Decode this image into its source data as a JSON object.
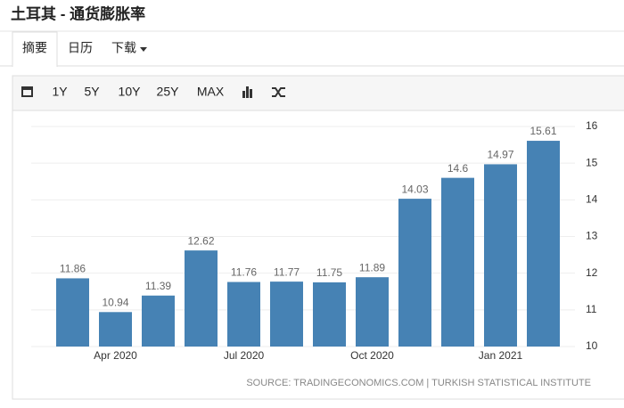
{
  "header": {
    "title": "土耳其 - 通货膨胀率"
  },
  "tabs": [
    "摘要",
    "日历",
    "下载"
  ],
  "toolbar": [
    "1Y",
    "5Y",
    "10Y",
    "25Y",
    "MAX"
  ],
  "chart_data": {
    "type": "bar",
    "categories": [
      null,
      "Apr 2020",
      null,
      null,
      "Jul 2020",
      null,
      null,
      "Oct 2020",
      null,
      null,
      "Jan 2021",
      null
    ],
    "values": [
      11.86,
      10.94,
      11.39,
      12.62,
      11.76,
      11.77,
      11.75,
      11.89,
      14.03,
      14.6,
      14.97,
      15.61
    ],
    "color": "#4682b4",
    "ylim": [
      10,
      16
    ],
    "yticks": [
      10,
      11,
      12,
      13,
      14,
      15,
      16
    ],
    "grid": true,
    "source": "SOURCE: TRADINGECONOMICS.COM | TURKISH STATISTICAL INSTITUTE"
  }
}
